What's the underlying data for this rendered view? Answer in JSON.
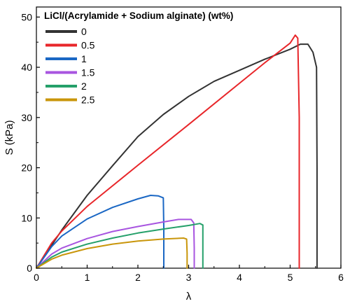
{
  "chart_data": {
    "type": "line",
    "xlabel": "λ",
    "ylabel": "S (kPa)",
    "xlim": [
      0,
      6
    ],
    "ylim": [
      0,
      52
    ],
    "xticks": [
      "0",
      "1",
      "2",
      "3",
      "4",
      "5",
      "6"
    ],
    "yticks": [
      "0",
      "10",
      "20",
      "30",
      "40",
      "50"
    ],
    "grid": false,
    "legend": {
      "title": "LiCl/(Acrylamide + Sodium alginate) (wt%)",
      "placement": "top-left"
    },
    "series": [
      {
        "name": "0",
        "color": "#333333",
        "points": [
          [
            0,
            0
          ],
          [
            0.5,
            7.6
          ],
          [
            1,
            14.5
          ],
          [
            1.5,
            20.4
          ],
          [
            2,
            26.2
          ],
          [
            2.5,
            30.6
          ],
          [
            3,
            34.2
          ],
          [
            3.5,
            37.2
          ],
          [
            4,
            39.4
          ],
          [
            4.5,
            41.6
          ],
          [
            5,
            43.6
          ],
          [
            5.2,
            44.6
          ],
          [
            5.35,
            44.6
          ],
          [
            5.45,
            43.0
          ],
          [
            5.52,
            40.0
          ],
          [
            5.53,
            20.0
          ],
          [
            5.53,
            0
          ]
        ]
      },
      {
        "name": "0.5",
        "color": "#e8262a",
        "points": [
          [
            0,
            0
          ],
          [
            0.3,
            5.0
          ],
          [
            0.5,
            7.4
          ],
          [
            1,
            12.3
          ],
          [
            2,
            20.5
          ],
          [
            3,
            28.6
          ],
          [
            4,
            36.8
          ],
          [
            4.5,
            40.9
          ],
          [
            5,
            44.8
          ],
          [
            5.1,
            46.4
          ],
          [
            5.15,
            45.8
          ],
          [
            5.18,
            30.0
          ],
          [
            5.18,
            0
          ]
        ]
      },
      {
        "name": "1",
        "color": "#1a67c4",
        "points": [
          [
            0,
            0
          ],
          [
            0.3,
            4.3
          ],
          [
            0.5,
            6.4
          ],
          [
            1,
            9.8
          ],
          [
            1.5,
            12.1
          ],
          [
            2,
            13.8
          ],
          [
            2.25,
            14.5
          ],
          [
            2.4,
            14.4
          ],
          [
            2.5,
            14.0
          ],
          [
            2.51,
            8.0
          ],
          [
            2.51,
            0
          ]
        ]
      },
      {
        "name": "1.5",
        "color": "#a855e0",
        "points": [
          [
            0,
            0
          ],
          [
            0.3,
            2.8
          ],
          [
            0.5,
            4.0
          ],
          [
            1,
            5.9
          ],
          [
            1.5,
            7.3
          ],
          [
            2,
            8.3
          ],
          [
            2.5,
            9.2
          ],
          [
            2.8,
            9.7
          ],
          [
            3.05,
            9.7
          ],
          [
            3.1,
            9.0
          ],
          [
            3.11,
            4.0
          ],
          [
            3.11,
            0
          ]
        ]
      },
      {
        "name": "2",
        "color": "#25a06a",
        "points": [
          [
            0,
            0
          ],
          [
            0.3,
            2.2
          ],
          [
            0.5,
            3.2
          ],
          [
            1,
            4.8
          ],
          [
            1.5,
            6.0
          ],
          [
            2,
            7.0
          ],
          [
            2.5,
            7.8
          ],
          [
            3,
            8.5
          ],
          [
            3.22,
            8.9
          ],
          [
            3.28,
            8.6
          ],
          [
            3.28,
            4.0
          ],
          [
            3.28,
            0
          ]
        ]
      },
      {
        "name": "2.5",
        "color": "#c9960b",
        "points": [
          [
            0,
            0
          ],
          [
            0.3,
            1.8
          ],
          [
            0.5,
            2.6
          ],
          [
            1,
            3.9
          ],
          [
            1.5,
            4.8
          ],
          [
            2,
            5.4
          ],
          [
            2.5,
            5.8
          ],
          [
            2.9,
            6.0
          ],
          [
            2.96,
            5.8
          ],
          [
            2.97,
            3.0
          ],
          [
            2.97,
            0
          ]
        ]
      }
    ]
  }
}
